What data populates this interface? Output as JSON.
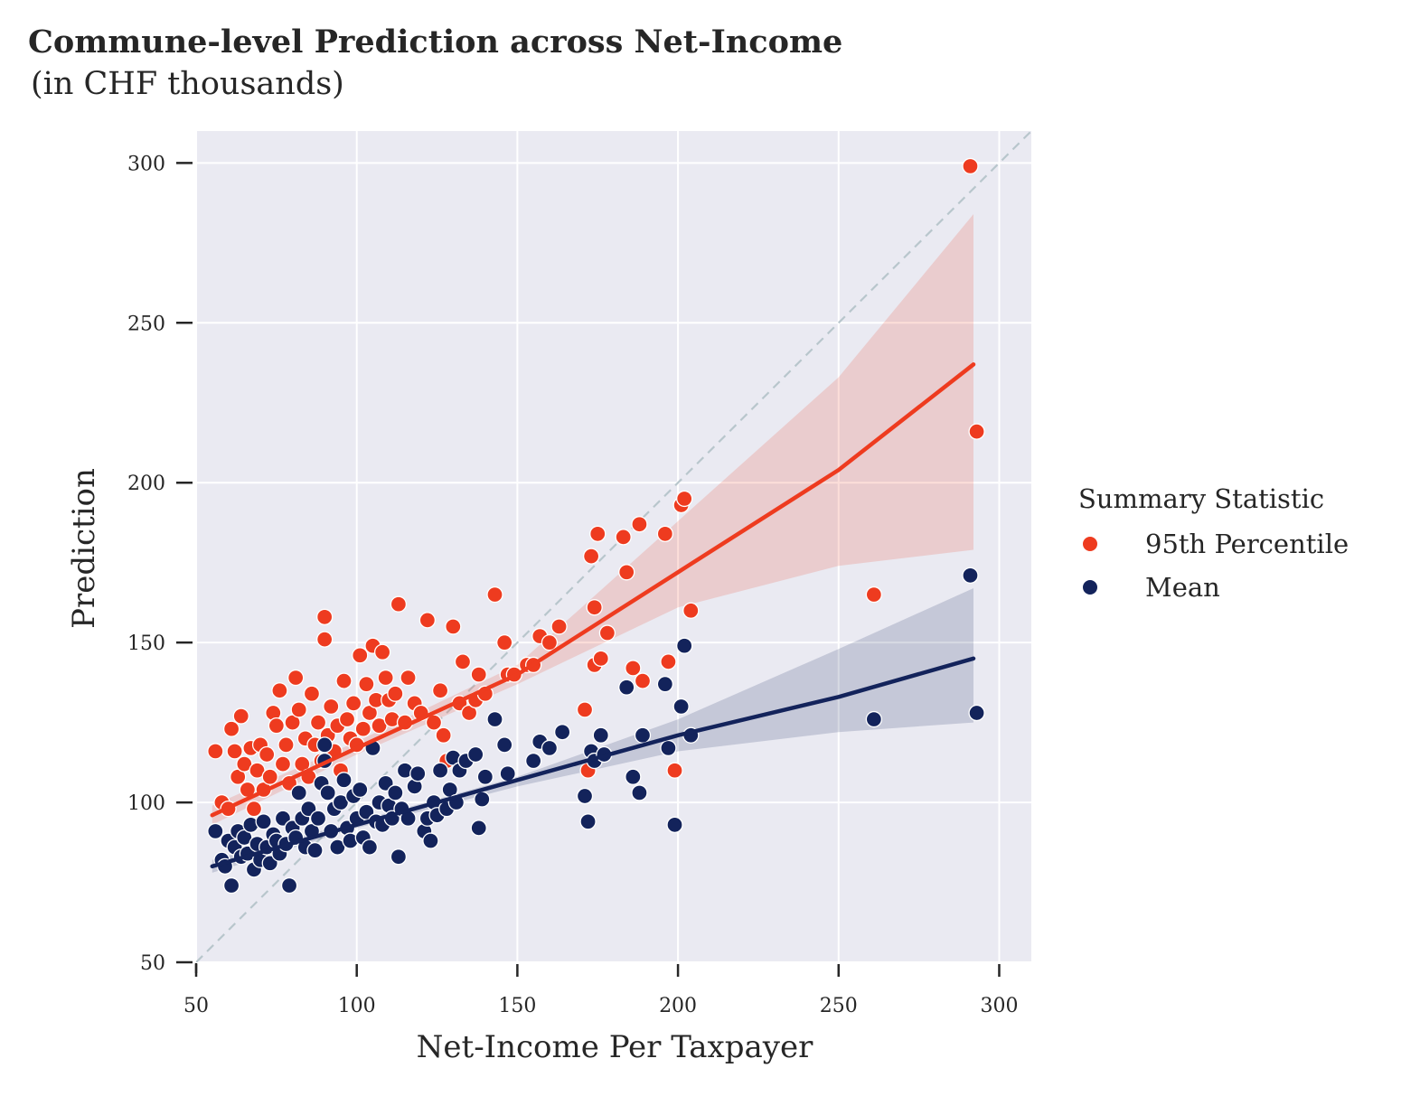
{
  "chart_data": {
    "type": "scatter",
    "title": "Commune-level Prediction across Net-Income",
    "subtitle": "(in CHF thousands)",
    "xlabel": "Net-Income Per Taxpayer",
    "ylabel": "Prediction",
    "xlim": [
      50,
      310
    ],
    "ylim": [
      50,
      310
    ],
    "xticks": [
      50,
      100,
      150,
      200,
      250,
      300
    ],
    "yticks": [
      50,
      100,
      150,
      200,
      250,
      300
    ],
    "grid": true,
    "background": "#eaeaf2",
    "identity_line": true,
    "legend": {
      "title": "Summary Statistic",
      "placement": "right",
      "entries": [
        "95th Percentile",
        "Mean"
      ]
    },
    "series": [
      {
        "name": "95th Percentile",
        "color": "#ee3b1f",
        "points": [
          [
            56,
            116
          ],
          [
            58,
            100
          ],
          [
            60,
            98
          ],
          [
            61,
            123
          ],
          [
            62,
            116
          ],
          [
            63,
            108
          ],
          [
            64,
            127
          ],
          [
            65,
            112
          ],
          [
            66,
            104
          ],
          [
            67,
            117
          ],
          [
            68,
            98
          ],
          [
            69,
            110
          ],
          [
            70,
            118
          ],
          [
            71,
            104
          ],
          [
            72,
            115
          ],
          [
            73,
            108
          ],
          [
            74,
            128
          ],
          [
            75,
            124
          ],
          [
            76,
            135
          ],
          [
            77,
            112
          ],
          [
            78,
            118
          ],
          [
            79,
            106
          ],
          [
            80,
            125
          ],
          [
            81,
            139
          ],
          [
            82,
            129
          ],
          [
            83,
            112
          ],
          [
            84,
            120
          ],
          [
            85,
            108
          ],
          [
            86,
            134
          ],
          [
            87,
            118
          ],
          [
            88,
            125
          ],
          [
            89,
            113
          ],
          [
            90,
            151
          ],
          [
            90,
            158
          ],
          [
            91,
            121
          ],
          [
            92,
            130
          ],
          [
            93,
            116
          ],
          [
            94,
            124
          ],
          [
            95,
            110
          ],
          [
            96,
            138
          ],
          [
            97,
            126
          ],
          [
            98,
            120
          ],
          [
            99,
            131
          ],
          [
            100,
            118
          ],
          [
            101,
            146
          ],
          [
            102,
            123
          ],
          [
            103,
            137
          ],
          [
            104,
            128
          ],
          [
            105,
            149
          ],
          [
            106,
            132
          ],
          [
            107,
            124
          ],
          [
            108,
            147
          ],
          [
            109,
            139
          ],
          [
            110,
            132
          ],
          [
            111,
            126
          ],
          [
            112,
            134
          ],
          [
            113,
            162
          ],
          [
            115,
            125
          ],
          [
            116,
            139
          ],
          [
            118,
            131
          ],
          [
            120,
            128
          ],
          [
            122,
            157
          ],
          [
            124,
            125
          ],
          [
            126,
            135
          ],
          [
            127,
            121
          ],
          [
            128,
            113
          ],
          [
            130,
            155
          ],
          [
            132,
            131
          ],
          [
            133,
            144
          ],
          [
            135,
            128
          ],
          [
            137,
            132
          ],
          [
            138,
            140
          ],
          [
            140,
            134
          ],
          [
            143,
            165
          ],
          [
            146,
            150
          ],
          [
            147,
            140
          ],
          [
            149,
            140
          ],
          [
            153,
            143
          ],
          [
            155,
            143
          ],
          [
            157,
            152
          ],
          [
            160,
            150
          ],
          [
            163,
            155
          ],
          [
            171,
            129
          ],
          [
            172,
            110
          ],
          [
            173,
            177
          ],
          [
            174,
            161
          ],
          [
            174,
            143
          ],
          [
            175,
            184
          ],
          [
            176,
            145
          ],
          [
            178,
            153
          ],
          [
            183,
            183
          ],
          [
            184,
            172
          ],
          [
            186,
            142
          ],
          [
            188,
            187
          ],
          [
            189,
            138
          ],
          [
            196,
            184
          ],
          [
            197,
            144
          ],
          [
            199,
            110
          ],
          [
            201,
            193
          ],
          [
            202,
            195
          ],
          [
            204,
            160
          ],
          [
            261,
            165
          ],
          [
            291,
            299
          ],
          [
            293,
            216
          ]
        ],
        "fit": [
          [
            55,
            96
          ],
          [
            100,
            117
          ],
          [
            150,
            140
          ],
          [
            200,
            172
          ],
          [
            250,
            204
          ],
          [
            292,
            237
          ]
        ],
        "ci_upper": [
          [
            55,
            99
          ],
          [
            100,
            119
          ],
          [
            150,
            143
          ],
          [
            200,
            188
          ],
          [
            250,
            233
          ],
          [
            292,
            284
          ]
        ],
        "ci_lower": [
          [
            55,
            93
          ],
          [
            100,
            115
          ],
          [
            150,
            137
          ],
          [
            200,
            161
          ],
          [
            250,
            174
          ],
          [
            292,
            179
          ]
        ]
      },
      {
        "name": "Mean",
        "color": "#13235b",
        "points": [
          [
            56,
            91
          ],
          [
            58,
            82
          ],
          [
            59,
            80
          ],
          [
            60,
            88
          ],
          [
            61,
            74
          ],
          [
            62,
            86
          ],
          [
            63,
            91
          ],
          [
            64,
            83
          ],
          [
            65,
            89
          ],
          [
            66,
            84
          ],
          [
            67,
            93
          ],
          [
            68,
            79
          ],
          [
            69,
            87
          ],
          [
            70,
            82
          ],
          [
            71,
            94
          ],
          [
            72,
            86
          ],
          [
            73,
            81
          ],
          [
            74,
            90
          ],
          [
            75,
            88
          ],
          [
            76,
            84
          ],
          [
            77,
            95
          ],
          [
            78,
            87
          ],
          [
            79,
            74
          ],
          [
            80,
            92
          ],
          [
            81,
            89
          ],
          [
            82,
            103
          ],
          [
            83,
            95
          ],
          [
            84,
            86
          ],
          [
            85,
            98
          ],
          [
            86,
            91
          ],
          [
            87,
            85
          ],
          [
            88,
            95
          ],
          [
            89,
            106
          ],
          [
            90,
            118
          ],
          [
            90,
            113
          ],
          [
            91,
            103
          ],
          [
            92,
            91
          ],
          [
            93,
            98
          ],
          [
            94,
            86
          ],
          [
            95,
            100
          ],
          [
            96,
            107
          ],
          [
            97,
            92
          ],
          [
            98,
            88
          ],
          [
            99,
            102
          ],
          [
            100,
            95
          ],
          [
            101,
            104
          ],
          [
            102,
            89
          ],
          [
            103,
            97
          ],
          [
            104,
            86
          ],
          [
            105,
            117
          ],
          [
            106,
            94
          ],
          [
            107,
            100
          ],
          [
            108,
            93
          ],
          [
            109,
            106
          ],
          [
            110,
            99
          ],
          [
            111,
            95
          ],
          [
            112,
            103
          ],
          [
            113,
            83
          ],
          [
            114,
            98
          ],
          [
            115,
            110
          ],
          [
            116,
            95
          ],
          [
            118,
            105
          ],
          [
            119,
            109
          ],
          [
            121,
            91
          ],
          [
            122,
            95
          ],
          [
            123,
            88
          ],
          [
            124,
            100
          ],
          [
            125,
            96
          ],
          [
            126,
            110
          ],
          [
            128,
            98
          ],
          [
            129,
            104
          ],
          [
            130,
            114
          ],
          [
            131,
            100
          ],
          [
            132,
            110
          ],
          [
            134,
            113
          ],
          [
            137,
            115
          ],
          [
            138,
            92
          ],
          [
            139,
            101
          ],
          [
            140,
            108
          ],
          [
            143,
            126
          ],
          [
            146,
            118
          ],
          [
            147,
            109
          ],
          [
            155,
            113
          ],
          [
            157,
            119
          ],
          [
            160,
            117
          ],
          [
            164,
            122
          ],
          [
            171,
            102
          ],
          [
            172,
            94
          ],
          [
            173,
            116
          ],
          [
            174,
            113
          ],
          [
            176,
            121
          ],
          [
            177,
            115
          ],
          [
            184,
            136
          ],
          [
            186,
            108
          ],
          [
            188,
            103
          ],
          [
            189,
            121
          ],
          [
            196,
            137
          ],
          [
            197,
            117
          ],
          [
            199,
            93
          ],
          [
            201,
            130
          ],
          [
            202,
            149
          ],
          [
            204,
            121
          ],
          [
            261,
            126
          ],
          [
            291,
            171
          ],
          [
            293,
            128
          ]
        ],
        "fit": [
          [
            55,
            80
          ],
          [
            100,
            93
          ],
          [
            150,
            107
          ],
          [
            200,
            121
          ],
          [
            250,
            133
          ],
          [
            292,
            145
          ]
        ],
        "ci_upper": [
          [
            55,
            82
          ],
          [
            100,
            94
          ],
          [
            150,
            108
          ],
          [
            200,
            126
          ],
          [
            250,
            148
          ],
          [
            292,
            167
          ]
        ],
        "ci_lower": [
          [
            55,
            78
          ],
          [
            100,
            92
          ],
          [
            150,
            105
          ],
          [
            200,
            116
          ],
          [
            250,
            122
          ],
          [
            292,
            125
          ]
        ]
      }
    ]
  }
}
